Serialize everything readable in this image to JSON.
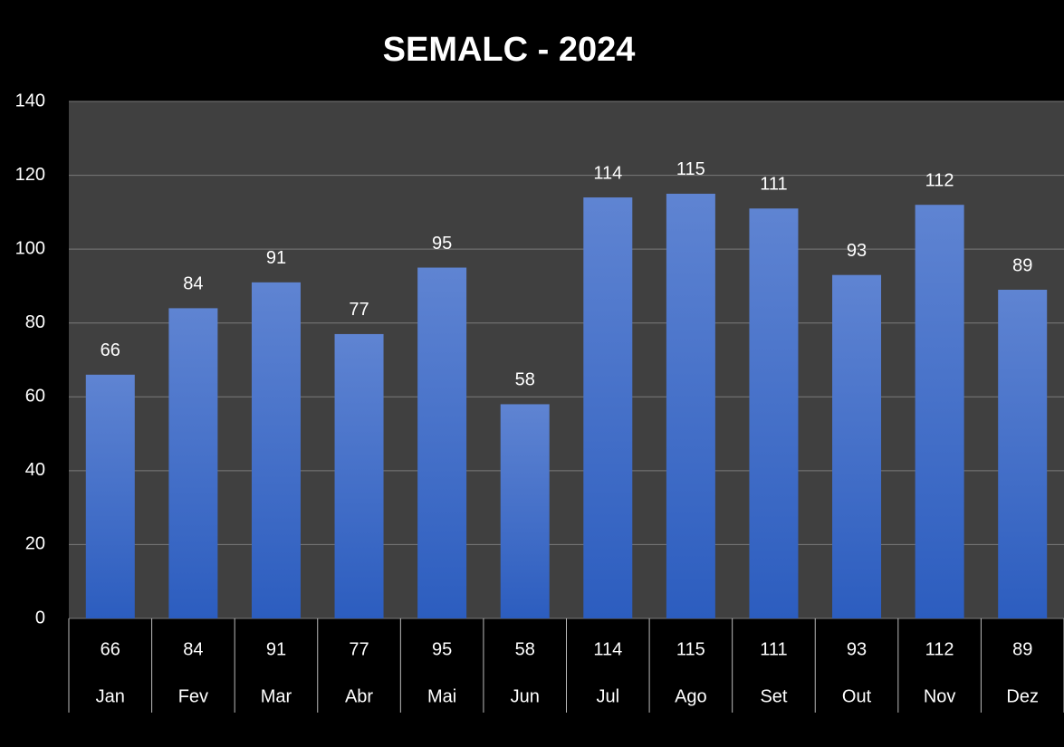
{
  "chart_data": {
    "type": "bar",
    "title": "SEMALC - 2024",
    "categories": [
      "Jan",
      "Fev",
      "Mar",
      "Abr",
      "Mai",
      "Jun",
      "Jul",
      "Ago",
      "Set",
      "Out",
      "Nov",
      "Dez"
    ],
    "values": [
      66,
      84,
      91,
      77,
      95,
      58,
      114,
      115,
      111,
      93,
      112,
      89
    ],
    "color": "#4470cc",
    "ylim": [
      0,
      140
    ],
    "yticks": [
      0,
      20,
      40,
      60,
      80,
      100,
      120,
      140
    ],
    "grid": true
  }
}
